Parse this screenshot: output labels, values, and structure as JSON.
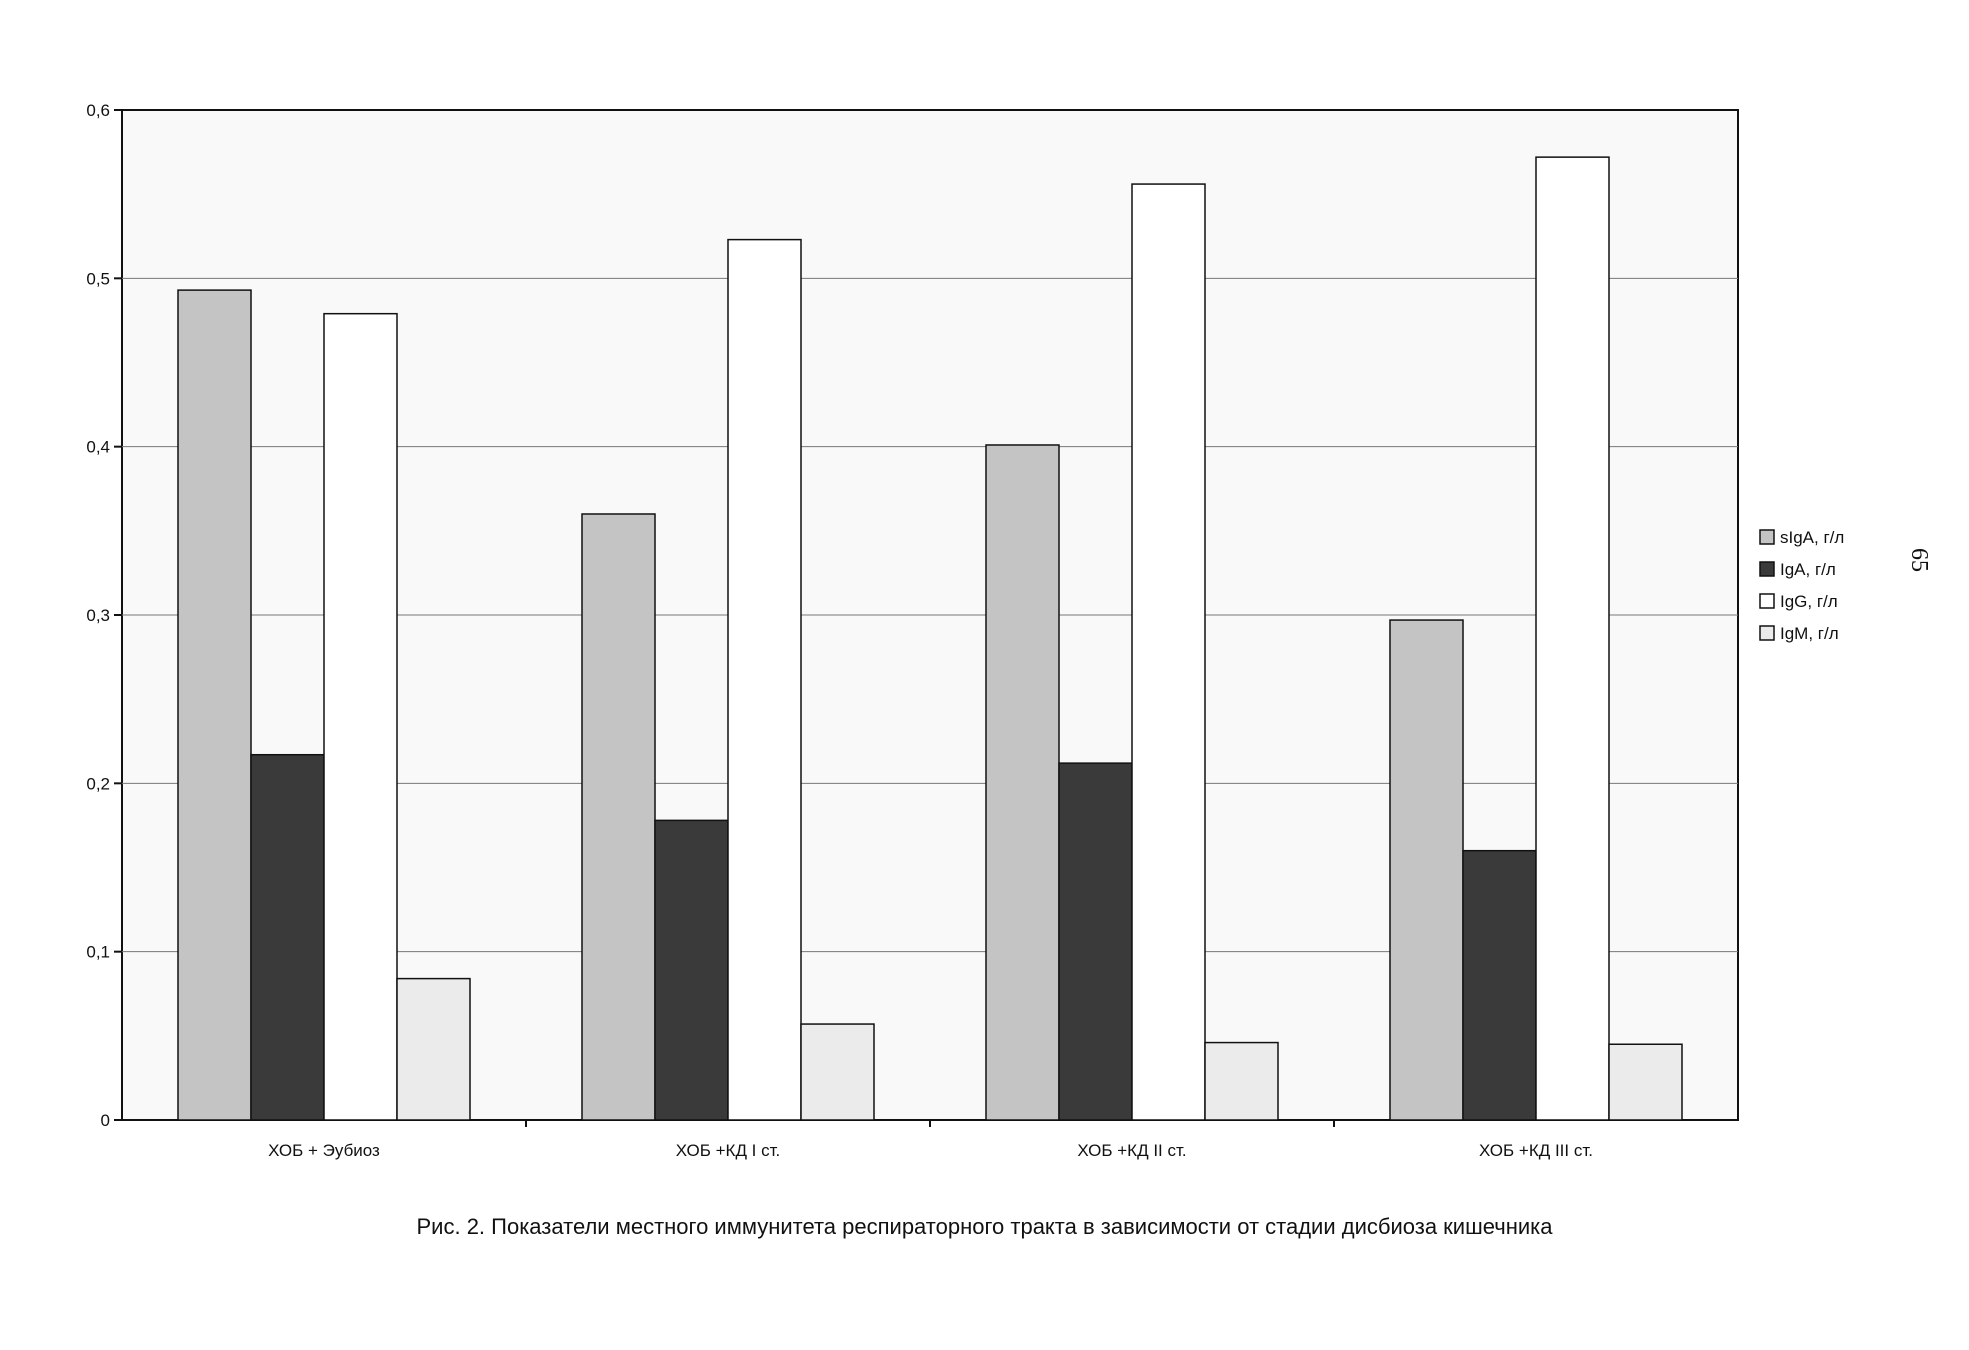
{
  "page_number": "65",
  "caption": "Рис. 2. Показатели местного иммунитета респираторного тракта в зависимости от стадии дисбиоза кишечника",
  "chart_data": {
    "type": "bar",
    "title": "",
    "xlabel": "",
    "ylabel": "",
    "categories": [
      "ХОБ + Эубиоз",
      "ХОБ +КД I ст.",
      "ХОБ +КД II ст.",
      "ХОБ +КД III ст."
    ],
    "series": [
      {
        "name": "sIgA, г/л",
        "values": [
          0.493,
          0.36,
          0.401,
          0.297
        ],
        "color": "#c4c4c4"
      },
      {
        "name": "IgA, г/л",
        "values": [
          0.217,
          0.178,
          0.212,
          0.16
        ],
        "color": "#3a3a3a"
      },
      {
        "name": "IgG, г/л",
        "values": [
          0.479,
          0.523,
          0.556,
          0.572
        ],
        "color": "#ffffff"
      },
      {
        "name": "IgM, г/л",
        "values": [
          0.084,
          0.057,
          0.046,
          0.045
        ],
        "color": "#ebebeb"
      }
    ],
    "y_ticks": [
      "0",
      "0,1",
      "0,2",
      "0,3",
      "0,4",
      "0,5",
      "0,6"
    ],
    "ylim": [
      0,
      0.6
    ],
    "grid": true,
    "legend_position": "right"
  }
}
